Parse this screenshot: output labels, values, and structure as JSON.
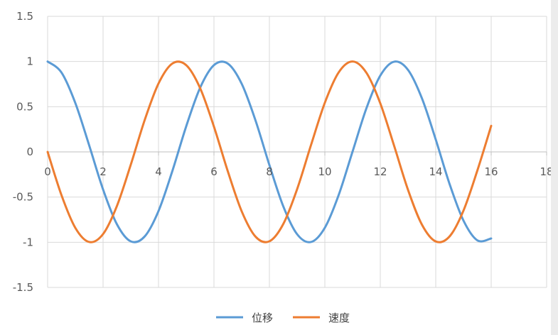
{
  "chart_data": {
    "type": "line",
    "title": "",
    "xlabel": "",
    "ylabel": "",
    "xlim": [
      0,
      18
    ],
    "ylim": [
      -1.5,
      1.5
    ],
    "x_ticks": [
      "0",
      "2",
      "4",
      "6",
      "8",
      "10",
      "12",
      "14",
      "16",
      "18"
    ],
    "y_ticks": [
      "1.5",
      "1",
      "0.5",
      "0",
      "-0.5",
      "-1",
      "-1.5"
    ],
    "grid": true,
    "legend_position": "bottom",
    "series": [
      {
        "name": "位移",
        "color": "#5b9bd5",
        "x": [
          0,
          0.5,
          1,
          1.5,
          2,
          2.5,
          3,
          3.5,
          4,
          4.5,
          5,
          5.5,
          6,
          6.5,
          7,
          7.5,
          8,
          8.5,
          9,
          9.5,
          10,
          10.5,
          11,
          11.5,
          12,
          12.5,
          13,
          13.5,
          14,
          14.5,
          15,
          15.5,
          16
        ],
        "values": [
          1,
          0.878,
          0.54,
          0.071,
          -0.416,
          -0.801,
          -0.99,
          -0.936,
          -0.654,
          -0.211,
          0.284,
          0.709,
          0.96,
          0.977,
          0.754,
          0.347,
          -0.146,
          -0.602,
          -0.911,
          -0.997,
          -0.839,
          -0.476,
          0.004,
          0.483,
          0.844,
          0.998,
          0.907,
          0.594,
          0.137,
          -0.356,
          -0.76,
          -0.979,
          -0.958
        ]
      },
      {
        "name": "速度",
        "color": "#ed7d31",
        "x": [
          0,
          0.5,
          1,
          1.5,
          2,
          2.5,
          3,
          3.5,
          4,
          4.5,
          5,
          5.5,
          6,
          6.5,
          7,
          7.5,
          8,
          8.5,
          9,
          9.5,
          10,
          10.5,
          11,
          11.5,
          12,
          12.5,
          13,
          13.5,
          14,
          14.5,
          15,
          15.5,
          16
        ],
        "values": [
          0,
          -0.479,
          -0.841,
          -0.997,
          -0.909,
          -0.598,
          -0.141,
          0.351,
          0.757,
          0.978,
          0.959,
          0.706,
          0.279,
          -0.215,
          -0.657,
          -0.938,
          -0.989,
          -0.798,
          -0.412,
          0.075,
          0.544,
          0.88,
          1,
          0.875,
          0.537,
          0.066,
          -0.42,
          -0.804,
          -0.991,
          -0.935,
          -0.65,
          -0.207,
          0.288
        ]
      }
    ]
  }
}
